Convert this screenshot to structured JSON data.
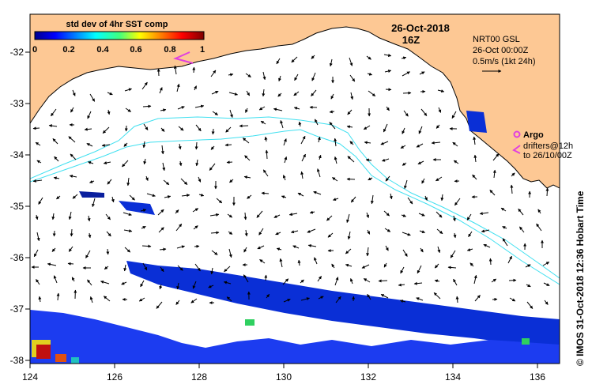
{
  "map": {
    "date": "26-Oct-2018",
    "hour": "16Z",
    "colorbar": {
      "title": "std dev of 4hr SST comp",
      "ticks": [
        "0",
        "0.2",
        "0.4",
        "0.6",
        "0.8",
        "1"
      ]
    },
    "legend": {
      "product": "NRT00 GSL",
      "analysis_time": "26-Oct 00:00Z",
      "scale_text": "0.5m/s (1kt 24h)"
    },
    "argo_label": "Argo",
    "drifter_label_1": "drifters@12h",
    "drifter_label_2": "to 26/10/00Z",
    "credit": "© IMOS 31-Oct-2018 12:36 Hobart Time",
    "longitude_ticks": [
      "124",
      "126",
      "128",
      "130",
      "132",
      "134",
      "136"
    ],
    "latitude_ticks": [
      "-32",
      "-33",
      "-34",
      "-35",
      "-36",
      "-37",
      "-38"
    ],
    "colors": {
      "land": "#fdc894",
      "contour": "#40e0f0",
      "argo": "#e040e0",
      "drifter": "#e040e0"
    }
  }
}
